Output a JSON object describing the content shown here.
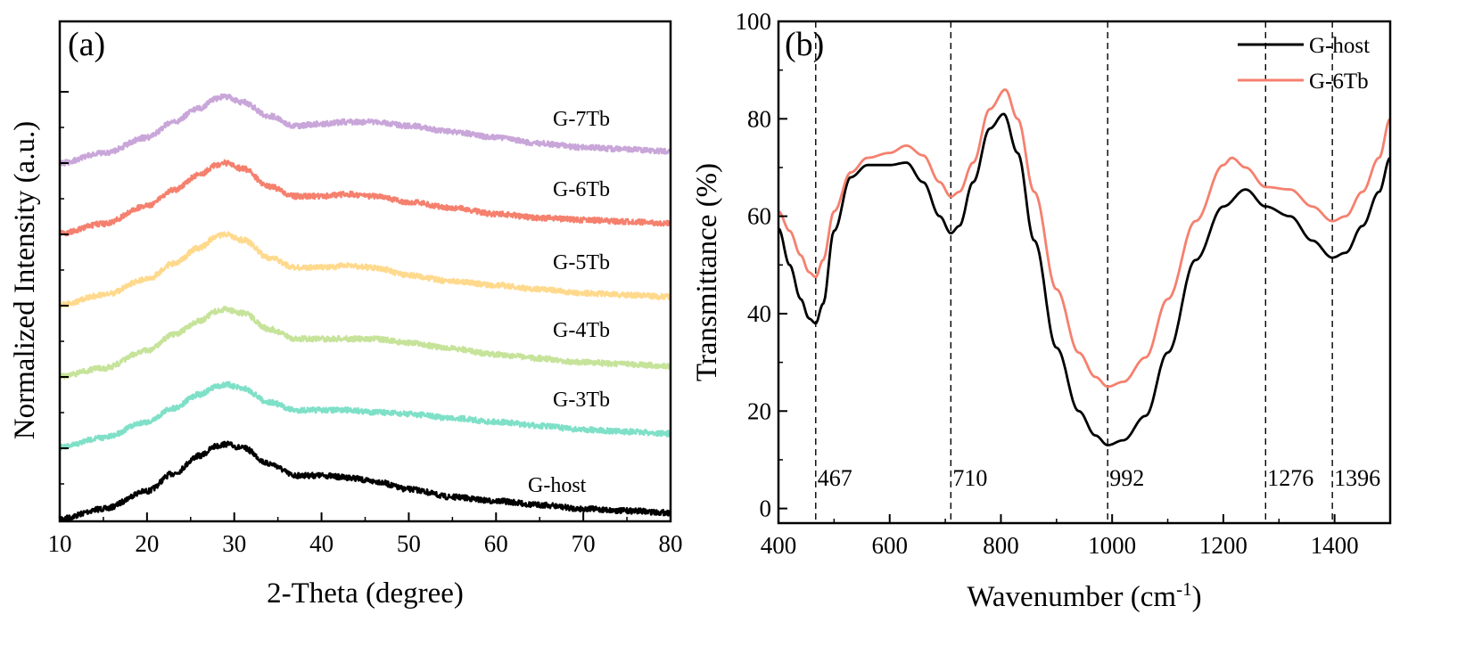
{
  "chart_data": [
    {
      "type": "line",
      "panel_label": "(a)",
      "xlabel": "2-Theta (degree)",
      "ylabel": "Normalized Intensity (a.u.)",
      "xlim": [
        10,
        80
      ],
      "xticks": [
        10,
        20,
        30,
        40,
        50,
        60,
        70,
        80
      ],
      "y_tick_labels_shown": false,
      "series": [
        {
          "name": "G-host",
          "color": "#000000",
          "x": [
            10,
            15,
            20,
            23,
            26,
            28,
            29,
            31,
            34,
            37,
            40,
            43,
            46,
            50,
            55,
            60,
            65,
            70,
            75,
            80
          ],
          "y": [
            0,
            2.5,
            7,
            11.5,
            16,
            18.5,
            19,
            18,
            14,
            11,
            11,
            10.5,
            9.5,
            7.5,
            5.5,
            4.5,
            3.5,
            2.5,
            2,
            1.5
          ]
        },
        {
          "name": "G-3Tb",
          "color": "#7fe0c8",
          "x": [
            10,
            15,
            20,
            23,
            26,
            28,
            29,
            31,
            34,
            37,
            40,
            43,
            46,
            50,
            55,
            60,
            65,
            70,
            75,
            80
          ],
          "y": [
            0,
            2.5,
            6.5,
            10,
            13.5,
            15.5,
            16,
            15,
            11.5,
            9.5,
            9.5,
            9.5,
            9,
            8.5,
            7.5,
            6.5,
            5.5,
            4.5,
            4,
            3.5
          ]
        },
        {
          "name": "G-4Tb",
          "color": "#c6e39a",
          "x": [
            10,
            15,
            20,
            23,
            26,
            28,
            29,
            31,
            34,
            37,
            40,
            43,
            46,
            50,
            55,
            60,
            65,
            70,
            75,
            80
          ],
          "y": [
            0,
            2,
            6.5,
            10.5,
            14,
            16.5,
            17,
            16,
            12,
            9.5,
            9.5,
            9.5,
            9.5,
            8.5,
            7,
            5.5,
            4.5,
            3.5,
            3,
            2.5
          ]
        },
        {
          "name": "G-5Tb",
          "color": "#ffd98c",
          "x": [
            10,
            15,
            20,
            23,
            26,
            28,
            29,
            31,
            34,
            37,
            40,
            43,
            46,
            50,
            55,
            60,
            65,
            70,
            75,
            80
          ],
          "y": [
            0,
            2.5,
            6.5,
            10.5,
            14.5,
            17.5,
            18,
            16.5,
            12,
            9.5,
            9.5,
            10,
            9.5,
            7.5,
            6,
            5,
            4,
            3,
            2.5,
            2
          ]
        },
        {
          "name": "G-6Tb",
          "color": "#f5806e",
          "x": [
            10,
            15,
            20,
            23,
            26,
            28,
            29,
            31,
            34,
            37,
            40,
            43,
            46,
            50,
            55,
            60,
            65,
            70,
            75,
            80
          ],
          "y": [
            0,
            2.5,
            7,
            11,
            15,
            17.5,
            18,
            16.5,
            12,
            9.5,
            9.5,
            10,
            9.5,
            8,
            6.5,
            5,
            4,
            3.5,
            3,
            2.5
          ]
        },
        {
          "name": "G-7Tb",
          "color": "#c9a6d9",
          "x": [
            10,
            15,
            20,
            23,
            26,
            28,
            29,
            31,
            34,
            37,
            40,
            43,
            46,
            50,
            55,
            60,
            65,
            70,
            75,
            80
          ],
          "y": [
            0,
            2.5,
            6.5,
            10.5,
            14,
            16.5,
            17,
            15.5,
            12,
            9.5,
            10,
            10.5,
            10.5,
            9.5,
            8,
            6.5,
            5,
            4,
            3.5,
            3
          ]
        }
      ]
    },
    {
      "type": "line",
      "panel_label": "(b)",
      "xlabel": "Wavenumber (cm",
      "xlabel_sup": "-1",
      "xlabel_end": ")",
      "ylabel": "Transmittance (%)",
      "xlim": [
        400,
        1500
      ],
      "ylim": [
        -3,
        100
      ],
      "xticks": [
        400,
        600,
        800,
        1000,
        1200,
        1400
      ],
      "yticks": [
        0,
        20,
        40,
        60,
        80,
        100
      ],
      "legend": "top-right",
      "reference_lines": [
        {
          "x": 467,
          "label": "467"
        },
        {
          "x": 710,
          "label": "710"
        },
        {
          "x": 992,
          "label": "992"
        },
        {
          "x": 1276,
          "label": "1276"
        },
        {
          "x": 1396,
          "label": "1396"
        }
      ],
      "series": [
        {
          "name": "G-host",
          "color": "#000000",
          "x": [
            400,
            420,
            440,
            455,
            467,
            480,
            500,
            530,
            560,
            600,
            630,
            660,
            690,
            710,
            725,
            750,
            780,
            805,
            830,
            860,
            900,
            940,
            970,
            992,
            1020,
            1060,
            1100,
            1150,
            1200,
            1240,
            1276,
            1320,
            1360,
            1396,
            1420,
            1450,
            1480,
            1500
          ],
          "y": [
            57.5,
            50,
            43,
            39,
            38,
            42,
            57,
            68,
            70.5,
            70.5,
            71,
            67,
            60,
            56.5,
            58,
            67,
            78,
            81,
            73,
            55,
            33,
            20,
            15,
            13,
            14,
            19,
            32,
            51,
            62,
            65.5,
            62,
            60,
            55,
            51.5,
            52.5,
            58,
            65,
            72
          ]
        },
        {
          "name": "G-6Tb",
          "color": "#f5806e",
          "x": [
            400,
            420,
            440,
            455,
            467,
            480,
            500,
            530,
            560,
            600,
            630,
            660,
            690,
            710,
            725,
            750,
            780,
            808,
            830,
            860,
            900,
            940,
            970,
            992,
            1020,
            1060,
            1100,
            1150,
            1200,
            1215,
            1240,
            1276,
            1320,
            1360,
            1396,
            1420,
            1450,
            1480,
            1500
          ],
          "y": [
            61,
            57,
            52,
            48.5,
            47.5,
            51,
            61,
            69,
            72,
            73,
            74.5,
            72.5,
            67,
            64,
            65,
            71,
            82,
            86,
            80,
            65,
            45,
            32,
            27,
            25,
            26,
            31,
            43,
            59,
            70.5,
            72,
            70,
            66,
            65.5,
            62,
            59,
            60,
            65,
            72,
            80
          ]
        }
      ]
    }
  ]
}
